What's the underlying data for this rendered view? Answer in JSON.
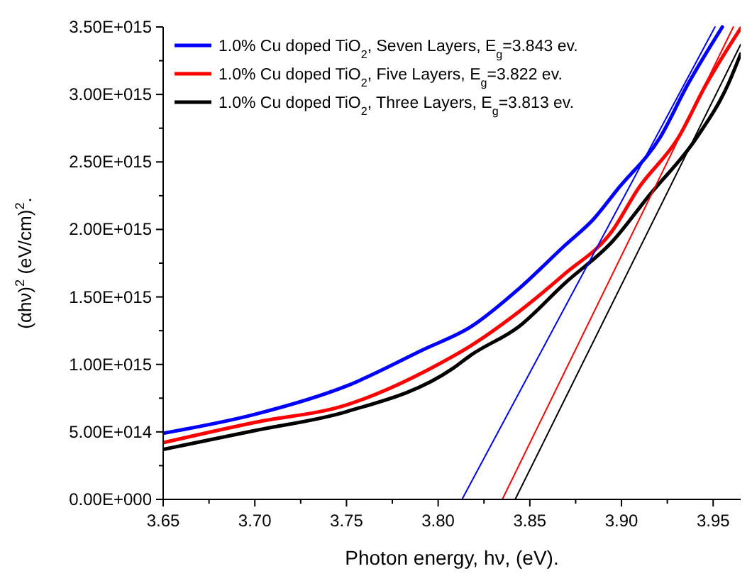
{
  "chart_data": {
    "type": "line",
    "xlabel": "Photon energy, hν, (eV).",
    "ylabel": "(αhν)$^{2}$ (eV/cm)$^{2}$.",
    "xlim": [
      3.65,
      3.965
    ],
    "xticks": [
      3.65,
      {
        "value": 3.7,
        "label": "3.70"
      },
      3.75,
      {
        "value": 3.8,
        "label": "3.80"
      },
      3.85,
      {
        "value": 3.9,
        "label": "3.90"
      },
      3.95
    ],
    "ylim": [
      0,
      3500000000000000.0
    ],
    "yticks": [
      {
        "value": 0,
        "label": "0.00E+000"
      },
      {
        "value": 500000000000000.0,
        "label": "5.00E+014"
      },
      {
        "value": 1000000000000000.0,
        "label": "1.00E+015"
      },
      {
        "value": 1500000000000000.0,
        "label": "1.50E+015"
      },
      {
        "value": 2000000000000000.0,
        "label": "2.00E+015"
      },
      {
        "value": 2500000000000000.0,
        "label": "2.50E+015"
      },
      {
        "value": 3000000000000000.0,
        "label": "3.00E+015"
      },
      {
        "value": 3500000000000000.0,
        "label": "3.50E+015"
      }
    ],
    "grid": false,
    "legend": "top left",
    "marker": "none",
    "line_style": "solid",
    "series": [
      {
        "name": "1.0% Cu doped TiO$_{2}$, Seven Layers, E$_{g}$=3.843 ev.",
        "color": "#0000ff",
        "x": [
          3.65,
          3.7,
          3.75,
          3.792,
          3.818,
          3.844,
          3.869,
          3.885,
          3.898,
          3.921,
          3.936,
          3.955
        ],
        "values": [
          490000000000000.0,
          630000000000000.0,
          840000000000000.0,
          1110000000000000.0,
          1280000000000000.0,
          1560000000000000.0,
          1880000000000000.0,
          2080000000000000.0,
          2300000000000000.0,
          2680000000000000.0,
          3070000000000000.0,
          3500000000000000.0
        ]
      },
      {
        "name": "1.0% Cu doped TiO$_{2}$, Five Layers, E$_{g}$=3.822 ev.",
        "color": "#ff0000",
        "x": [
          3.65,
          3.7,
          3.75,
          3.8,
          3.818,
          3.844,
          3.869,
          3.895,
          3.909,
          3.931,
          3.946,
          3.965
        ],
        "values": [
          420000000000000.0,
          570000000000000.0,
          700000000000000.0,
          1000000000000000.0,
          1140000000000000.0,
          1390000000000000.0,
          1670000000000000.0,
          1990000000000000.0,
          2300000000000000.0,
          2680000000000000.0,
          3070000000000000.0,
          3490000000000000.0
        ]
      },
      {
        "name": "1.0% Cu doped TiO$_{2}$, Three Layers, E$_{g}$=3.813 ev.",
        "color": "#000000",
        "x": [
          3.65,
          3.7,
          3.75,
          3.808,
          3.818,
          3.844,
          3.869,
          3.895,
          3.915,
          3.941,
          3.958,
          3.965
        ],
        "values": [
          370000000000000.0,
          510000000000000.0,
          650000000000000.0,
          970000000000000.0,
          1070000000000000.0,
          1280000000000000.0,
          1600000000000000.0,
          1910000000000000.0,
          2250000000000000.0,
          2680000000000000.0,
          3070000000000000.0,
          3300000000000000.0
        ]
      },
      {
        "type": "line",
        "color": "#0000ff",
        "x": [
          3.813,
          3.951
        ],
        "values": [
          0,
          3500000000000000.0
        ]
      },
      {
        "type": "line",
        "color": "#ff0000",
        "x": [
          3.835,
          3.961
        ],
        "values": [
          0,
          3500000000000000.0
        ]
      },
      {
        "type": "line",
        "color": "#000000",
        "x": [
          3.842,
          3.965
        ],
        "values": [
          0,
          3370000000000000.0
        ]
      }
    ]
  }
}
